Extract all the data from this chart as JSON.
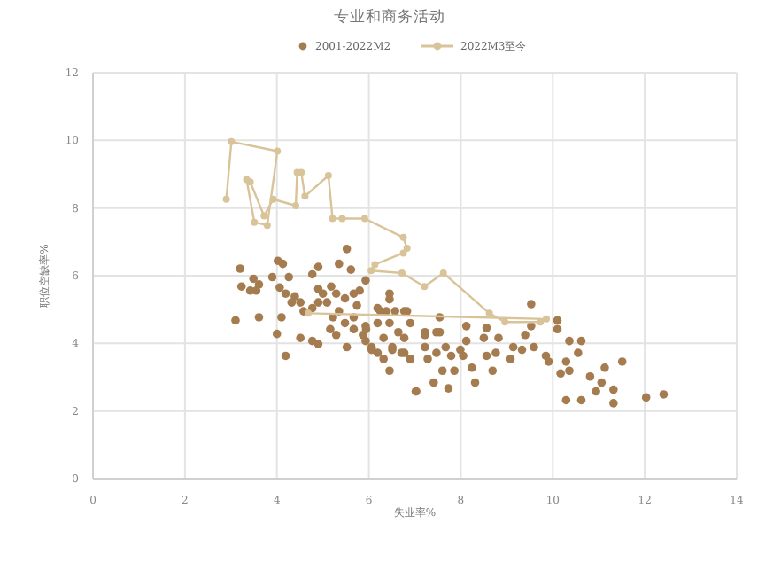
{
  "chart_data": {
    "type": "scatter",
    "title": "专业和商务活动",
    "xlabel": "失业率%",
    "ylabel": "职位空缺率%",
    "xlim": [
      0,
      14
    ],
    "ylim": [
      0,
      12
    ],
    "xticks": [
      0,
      2,
      4,
      6,
      8,
      10,
      12,
      14
    ],
    "yticks": [
      0,
      2,
      4,
      6,
      8,
      10,
      12
    ],
    "grid": true,
    "legend": "top",
    "marker": "circle",
    "series": [
      {
        "name": "2001-2022M2",
        "color": "#a57c4f",
        "x": [
          3.2,
          3.49,
          3.23,
          3.42,
          3.55,
          3.61,
          3.9,
          4.02,
          4.13,
          4.26,
          4.06,
          4.19,
          4.39,
          4.51,
          4.32,
          4.77,
          4.9,
          4.9,
          5.0,
          5.18,
          5.29,
          5.09,
          4.77,
          5.35,
          5.52,
          5.61,
          5.67,
          5.74,
          5.35,
          5.22,
          5.48,
          5.67,
          5.87,
          5.93,
          5.93,
          6.06,
          6.19,
          6.32,
          6.45,
          6.45,
          6.57,
          6.25,
          6.19,
          6.77,
          6.9,
          6.64,
          6.51,
          6.77,
          6.9,
          7.02,
          7.22,
          7.47,
          7.47,
          3.1,
          3.61,
          4.1,
          4.0,
          4.19,
          4.51,
          4.9,
          4.77,
          5.29,
          5.52,
          5.8,
          5.16,
          5.67,
          4.58,
          4.9,
          5.48,
          5.93,
          9.53,
          10.1,
          10.1,
          10.36,
          10.62,
          10.55,
          10.29,
          11.51,
          11.13,
          10.94,
          11.32,
          12.03,
          12.41,
          10.29,
          10.62,
          10.81,
          11.32,
          9.91,
          10.17,
          9.85,
          9.59,
          9.4,
          9.14,
          9.08,
          8.76,
          8.69,
          8.5,
          8.56,
          8.12,
          8.12,
          8.05,
          8.24,
          8.31,
          7.73,
          7.41,
          7.6,
          7.86,
          7.79,
          7.99,
          7.67,
          7.54,
          7.54,
          7.22,
          7.22,
          7.28,
          6.9,
          7.03,
          6.77,
          6.83,
          6.45,
          6.38,
          6.19,
          5.94,
          6.06,
          6.32,
          6.45,
          6.51,
          6.71,
          8.56,
          8.82,
          9.53,
          9.33,
          10.36,
          11.06
        ],
        "values": [
          6.21,
          5.91,
          5.68,
          5.56,
          5.56,
          5.74,
          5.96,
          6.44,
          6.35,
          5.96,
          5.65,
          5.47,
          5.39,
          5.21,
          5.21,
          6.04,
          6.26,
          5.61,
          5.47,
          5.68,
          5.47,
          5.21,
          5.04,
          6.35,
          6.79,
          6.18,
          5.47,
          5.12,
          4.95,
          4.77,
          4.6,
          4.42,
          4.25,
          4.51,
          4.07,
          3.89,
          3.72,
          4.16,
          4.6,
          5.3,
          4.95,
          4.95,
          4.6,
          4.95,
          4.6,
          4.33,
          3.89,
          3.72,
          3.54,
          2.58,
          4.25,
          4.33,
          3.72,
          4.68,
          4.77,
          4.77,
          4.28,
          3.63,
          4.16,
          3.98,
          4.07,
          4.25,
          3.89,
          5.56,
          4.42,
          4.77,
          4.95,
          5.21,
          5.33,
          5.86,
          5.16,
          4.68,
          4.42,
          4.07,
          4.07,
          3.72,
          3.46,
          3.46,
          3.28,
          2.58,
          2.23,
          2.4,
          2.49,
          2.32,
          2.32,
          3.02,
          2.63,
          3.46,
          3.11,
          3.63,
          3.89,
          4.25,
          3.89,
          3.54,
          3.72,
          3.19,
          4.16,
          4.46,
          4.51,
          4.07,
          3.63,
          3.28,
          2.84,
          2.67,
          2.84,
          3.19,
          3.19,
          3.63,
          3.81,
          3.89,
          4.33,
          4.77,
          4.33,
          3.89,
          3.54,
          3.54,
          2.58,
          4.16,
          4.95,
          5.47,
          4.95,
          5.04,
          4.42,
          3.81,
          3.54,
          3.19,
          3.81,
          3.72,
          3.63,
          4.16,
          4.51,
          3.81,
          3.19,
          2.84
        ]
      },
      {
        "name": "2022M3至今",
        "type": "line",
        "color": "#d9c49a",
        "x": [
          2.9,
          3.01,
          4.01,
          3.79,
          3.51,
          3.34,
          3.42,
          3.72,
          3.92,
          4.41,
          4.44,
          4.53,
          4.61,
          5.12,
          5.21,
          5.42,
          5.91,
          6.75,
          6.83,
          6.75,
          6.13,
          6.05,
          6.72,
          7.21,
          7.62,
          8.62,
          8.96,
          9.73,
          9.86,
          4.68
        ],
        "values": [
          8.26,
          9.96,
          9.68,
          7.49,
          7.58,
          8.84,
          8.77,
          7.77,
          8.26,
          8.07,
          9.05,
          9.05,
          8.35,
          8.96,
          7.69,
          7.69,
          7.69,
          7.13,
          6.81,
          6.67,
          6.33,
          6.15,
          6.08,
          5.68,
          6.08,
          4.89,
          4.63,
          4.63,
          4.72,
          4.89
        ]
      }
    ]
  }
}
